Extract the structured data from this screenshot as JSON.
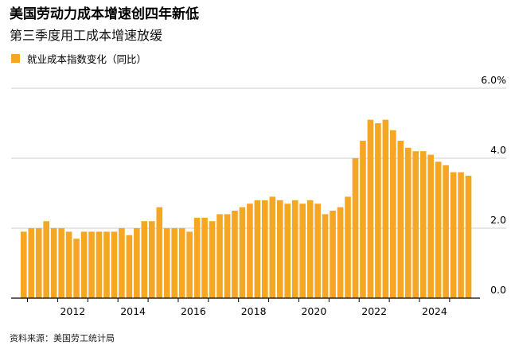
{
  "title": "美国劳动力成本增速创四年新低",
  "subtitle": "第三季度用工成本增速放缓",
  "legend": {
    "label": "就业成本指数变化（同比）"
  },
  "source": "资料来源：美国劳工统计局",
  "colors": {
    "bar": "#f5a623",
    "grid": "#cfcfcf",
    "axis": "#000000",
    "text": "#000000"
  },
  "chart_data": {
    "type": "bar",
    "title": "美国劳动力成本增速创四年新低",
    "subtitle": "第三季度用工成本增速放缓",
    "xlabel": "",
    "ylabel": "",
    "ylim": [
      0,
      6.0
    ],
    "yticks": [
      0,
      2,
      4,
      6
    ],
    "ytick_labels": [
      "0.0",
      "2.0",
      "4.0",
      "6.0%"
    ],
    "y_axis_side": "right",
    "grid": true,
    "legend_position": "top-left",
    "xtick_labels": [
      "2012",
      "2014",
      "2016",
      "2018",
      "2020",
      "2022",
      "2024"
    ],
    "series": [
      {
        "name": "就业成本指数变化（同比）",
        "categories": [
          "2010 Q4",
          "2011 Q1",
          "2011 Q2",
          "2011 Q3",
          "2011 Q4",
          "2012 Q1",
          "2012 Q2",
          "2012 Q3",
          "2012 Q4",
          "2013 Q1",
          "2013 Q2",
          "2013 Q3",
          "2013 Q4",
          "2014 Q1",
          "2014 Q2",
          "2014 Q3",
          "2014 Q4",
          "2015 Q1",
          "2015 Q2",
          "2015 Q3",
          "2015 Q4",
          "2016 Q1",
          "2016 Q2",
          "2016 Q3",
          "2016 Q4",
          "2017 Q1",
          "2017 Q2",
          "2017 Q3",
          "2017 Q4",
          "2018 Q1",
          "2018 Q2",
          "2018 Q3",
          "2018 Q4",
          "2019 Q1",
          "2019 Q2",
          "2019 Q3",
          "2019 Q4",
          "2020 Q1",
          "2020 Q2",
          "2020 Q3",
          "2020 Q4",
          "2021 Q1",
          "2021 Q2",
          "2021 Q3",
          "2021 Q4",
          "2022 Q1",
          "2022 Q2",
          "2022 Q3",
          "2022 Q4",
          "2023 Q1",
          "2023 Q2",
          "2023 Q3",
          "2023 Q4",
          "2024 Q1",
          "2024 Q2",
          "2024 Q3",
          "2024 Q4",
          "2025 Q1",
          "2025 Q2",
          "2025 Q3"
        ],
        "values": [
          1.9,
          2.0,
          2.0,
          2.2,
          2.0,
          2.0,
          1.9,
          1.7,
          1.9,
          1.9,
          1.9,
          1.9,
          1.9,
          2.0,
          1.8,
          2.0,
          2.2,
          2.2,
          2.6,
          2.0,
          2.0,
          2.0,
          1.9,
          2.3,
          2.3,
          2.2,
          2.4,
          2.4,
          2.5,
          2.6,
          2.7,
          2.8,
          2.8,
          2.9,
          2.8,
          2.7,
          2.8,
          2.7,
          2.8,
          2.7,
          2.4,
          2.5,
          2.6,
          2.9,
          4.0,
          4.5,
          5.1,
          5.0,
          5.1,
          4.8,
          4.5,
          4.3,
          4.2,
          4.2,
          4.1,
          3.9,
          3.8,
          3.6,
          3.6,
          3.5
        ]
      }
    ]
  }
}
